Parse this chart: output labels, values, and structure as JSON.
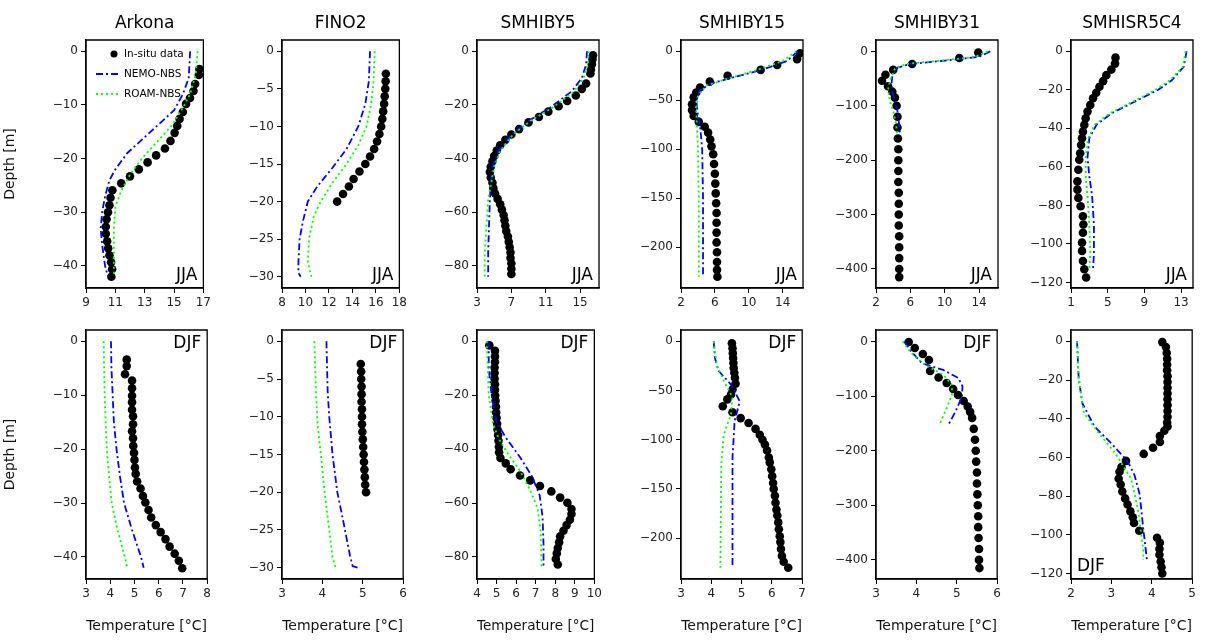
{
  "chart_data": [
    {
      "type": "scatter",
      "title": "Arkona",
      "ylabel": "Depth [m]",
      "xlim": [
        9,
        17
      ],
      "xticks": [
        9,
        11,
        13,
        15,
        17
      ],
      "ylim": [
        -44.1,
        2.1
      ],
      "yticks": [
        0,
        -10,
        -20,
        -30,
        -40
      ],
      "legend": "top left",
      "annotations": [
        "JJA"
      ],
      "series": [
        {
          "name": "In-situ data",
          "type": "scatter",
          "color": "#000000",
          "marker": "circle",
          "x": [
            16.73,
            16.69,
            16.44,
            16.33,
            16.09,
            15.82,
            15.6,
            15.38,
            15.22,
            15.04,
            14.76,
            14.38,
            13.78,
            13.2,
            12.6,
            12.0,
            11.4,
            10.8,
            10.67,
            10.6,
            10.5,
            10.4,
            10.35,
            10.35,
            10.44,
            10.51,
            10.6,
            10.71,
            10.78,
            10.73
          ],
          "values": [
            -3.3,
            -4.4,
            -6.1,
            -7.4,
            -8.7,
            -9.8,
            -11.3,
            -12.6,
            -13.9,
            -15.2,
            -16.7,
            -18.1,
            -19.4,
            -20.7,
            -22,
            -23.3,
            -24.6,
            -25.9,
            -27.3,
            -28.7,
            -30,
            -31.3,
            -32.7,
            -34,
            -35.4,
            -36.7,
            -38,
            -39.3,
            -40.6,
            -42
          ]
        },
        {
          "name": "NEMO-NBS",
          "type": "line",
          "color": "#0000ff",
          "line_style": "dashed",
          "x": [
            16.1,
            16.0,
            15.6,
            15.0,
            14.0,
            12.8,
            11.8,
            11.0,
            10.6,
            10.3,
            10.1,
            10.0,
            10.1,
            10.3,
            10.5
          ],
          "values": [
            0,
            -5,
            -8,
            -11,
            -13.5,
            -16.5,
            -19,
            -22,
            -24,
            -27,
            -30,
            -33,
            -36,
            -40,
            -42
          ]
        },
        {
          "name": "ROAM-NBS",
          "type": "line",
          "color": "#00ff00",
          "line_style": "dotted",
          "x": [
            16.6,
            16.5,
            16.1,
            15.5,
            14.8,
            13.8,
            12.8,
            12.0,
            11.4,
            11.0,
            10.9,
            10.9,
            10.9
          ],
          "values": [
            0,
            -4,
            -8,
            -11,
            -14,
            -17,
            -20,
            -23,
            -26,
            -29,
            -33,
            -38,
            -42
          ]
        }
      ]
    },
    {
      "type": "scatter",
      "title": "FINO2",
      "xlim": [
        8,
        18
      ],
      "xticks": [
        8,
        10,
        12,
        14,
        16,
        18
      ],
      "ylim": [
        -31.5,
        1.5
      ],
      "yticks": [
        0,
        -5,
        -10,
        -15,
        -20,
        -25,
        -30
      ],
      "annotations": [
        "JJA"
      ],
      "series": [
        {
          "type": "scatter",
          "color": "#000000",
          "marker": "circle",
          "x": [
            16.85,
            16.83,
            16.8,
            16.75,
            16.7,
            16.62,
            16.55,
            16.45,
            16.3,
            16.1,
            15.85,
            15.5,
            15.1,
            14.6,
            14.1,
            13.7,
            13.2,
            12.7
          ],
          "values": [
            -3,
            -4,
            -5,
            -6,
            -7,
            -8,
            -9,
            -10,
            -11,
            -12,
            -13,
            -14,
            -15,
            -16,
            -17,
            -18,
            -19,
            -20
          ]
        },
        {
          "type": "line",
          "color": "#0000ff",
          "line_style": "dashed",
          "x": [
            15.5,
            15.4,
            15.1,
            14.5,
            13.5,
            12.3,
            11.0,
            10.2,
            9.8,
            9.5,
            9.4,
            9.4,
            9.6
          ],
          "values": [
            0,
            -4,
            -7,
            -10,
            -13,
            -15.5,
            -18,
            -20,
            -22.5,
            -25,
            -28,
            -29.5,
            -30
          ]
        },
        {
          "type": "line",
          "color": "#00ff00",
          "line_style": "dotted",
          "x": [
            15.9,
            15.8,
            15.6,
            15.2,
            14.5,
            13.5,
            12.3,
            11.3,
            10.7,
            10.3,
            10.2,
            10.5
          ],
          "values": [
            0,
            -4,
            -7,
            -10,
            -12.5,
            -15,
            -17.5,
            -20,
            -22,
            -25,
            -28,
            -30
          ]
        }
      ]
    },
    {
      "type": "scatter",
      "title": "SMHIBY5",
      "xlim": [
        3,
        17.2
      ],
      "xticks": [
        3,
        7,
        11,
        15
      ],
      "ylim": [
        -88.2,
        4.2
      ],
      "yticks": [
        0,
        -20,
        -40,
        -60,
        -80
      ],
      "annotations": [
        "JJA"
      ],
      "series": [
        {
          "type": "scatter",
          "color": "#000000",
          "marker": "circle",
          "x": [
            16.5,
            16.44,
            16.37,
            16.26,
            16.2,
            15.7,
            15.2,
            14.5,
            13.5,
            12.5,
            11.3,
            10.2,
            9.0,
            7.9,
            7.0,
            6.3,
            5.7,
            5.3,
            5.0,
            4.8,
            4.6,
            4.5,
            4.6,
            4.8,
            4.9,
            5.1,
            5.4,
            5.7,
            5.9,
            6.1,
            6.2,
            6.3,
            6.4,
            6.6,
            6.7,
            6.8,
            6.9,
            6.9,
            7.0,
            7.0,
            7.0
          ],
          "values": [
            -1.5,
            -3,
            -4.8,
            -6.8,
            -8.3,
            -12,
            -14,
            -16.5,
            -18.5,
            -20.5,
            -22.5,
            -24.5,
            -26.5,
            -29,
            -31,
            -33,
            -35,
            -37,
            -39,
            -41,
            -43,
            -45,
            -47,
            -49,
            -51,
            -53,
            -55,
            -57,
            -59,
            -61,
            -63,
            -65,
            -67,
            -69,
            -71,
            -73,
            -75,
            -77,
            -79,
            -81,
            -83
          ]
        },
        {
          "type": "line",
          "color": "#0000ff",
          "line_style": "dashed",
          "x": [
            15.8,
            15.7,
            15.2,
            14.0,
            11.5,
            9.0,
            7.0,
            5.5,
            4.8,
            4.6,
            4.5,
            4.4,
            4.3,
            4.3
          ],
          "values": [
            0,
            -5,
            -10,
            -15,
            -21,
            -26,
            -31,
            -37,
            -43,
            -50,
            -55,
            -65,
            -75,
            -84
          ]
        },
        {
          "type": "line",
          "color": "#00ff00",
          "line_style": "dotted",
          "x": [
            16.0,
            15.9,
            15.4,
            14.3,
            11.8,
            9.2,
            7.2,
            5.7,
            5.0,
            4.6,
            4.3,
            4.1,
            3.9,
            3.9
          ],
          "values": [
            0,
            -5,
            -10,
            -15,
            -21,
            -26,
            -31,
            -37,
            -43,
            -50,
            -55,
            -65,
            -75,
            -84
          ]
        }
      ]
    },
    {
      "type": "scatter",
      "title": "SMHIBY15",
      "xlim": [
        2,
        16.4
      ],
      "xticks": [
        2,
        6,
        10,
        14
      ],
      "ylim": [
        -241.5,
        11.5
      ],
      "yticks": [
        0,
        -50,
        -100,
        -150,
        -200
      ],
      "annotations": [
        "JJA"
      ],
      "series": [
        {
          "type": "scatter",
          "color": "#000000",
          "marker": "circle",
          "x": [
            16.05,
            15.7,
            13.35,
            11.4,
            7.5,
            5.4,
            4.25,
            3.8,
            3.5,
            3.3,
            3.3,
            3.5,
            4.1,
            4.8,
            5.2,
            5.45,
            5.6,
            5.8,
            5.9,
            6.0,
            6.05,
            6.1,
            6.15,
            6.2,
            6.2,
            6.2,
            6.2,
            6.25,
            6.25,
            6.25,
            6.3
          ],
          "values": [
            -2,
            -8,
            -14,
            -19,
            -25,
            -31,
            -37,
            -42,
            -47,
            -54,
            -60,
            -66,
            -72,
            -77,
            -83,
            -90,
            -97,
            -105,
            -115,
            -125,
            -135,
            -145,
            -155,
            -165,
            -175,
            -185,
            -195,
            -205,
            -215,
            -223,
            -230
          ]
        },
        {
          "type": "line",
          "color": "#0000ff",
          "line_style": "dashed",
          "x": [
            15.8,
            14.5,
            11.5,
            8.0,
            5.5,
            4.2,
            3.8,
            4.0,
            4.3,
            4.5,
            4.6,
            4.6
          ],
          "values": [
            0,
            -10,
            -19,
            -27,
            -33,
            -40,
            -50,
            -65,
            -80,
            -100,
            -150,
            -230
          ]
        },
        {
          "type": "line",
          "color": "#00ff00",
          "line_style": "dotted",
          "x": [
            15.6,
            14.0,
            11.0,
            7.5,
            5.0,
            4.0,
            3.8,
            3.9,
            4.0,
            4.1,
            4.1
          ],
          "values": [
            0,
            -10,
            -19,
            -28,
            -35,
            -45,
            -60,
            -80,
            -100,
            -150,
            -230
          ]
        }
      ]
    },
    {
      "type": "scatter",
      "title": "SMHIBY31",
      "xlim": [
        2,
        16.2
      ],
      "xticks": [
        2,
        6,
        10,
        14
      ],
      "ylim": [
        -435,
        21
      ],
      "yticks": [
        0,
        -100,
        -200,
        -300,
        -400
      ],
      "annotations": [
        "JJA"
      ],
      "series": [
        {
          "type": "scatter",
          "color": "#000000",
          "marker": "circle",
          "x": [
            13.9,
            11.7,
            6.2,
            4.0,
            3.1,
            2.7,
            3.4,
            3.9,
            4.2,
            4.4,
            4.5,
            4.5,
            4.55,
            4.6,
            4.6,
            4.6,
            4.6,
            4.65,
            4.65,
            4.65,
            4.65,
            4.7,
            4.7,
            4.7,
            4.7,
            4.7
          ],
          "values": [
            -2,
            -12,
            -23,
            -34,
            -43,
            -54,
            -64,
            -74,
            -85,
            -100,
            -120,
            -140,
            -160,
            -180,
            -200,
            -220,
            -240,
            -260,
            -280,
            -300,
            -320,
            -340,
            -360,
            -380,
            -400,
            -415
          ]
        },
        {
          "type": "line",
          "color": "#0000ff",
          "line_style": "dashed",
          "x": [
            15.3,
            14.0,
            10.0,
            6.0,
            4.5,
            3.9,
            3.8,
            3.9,
            4.2,
            4.5,
            4.7,
            4.8
          ],
          "values": [
            0,
            -10,
            -17,
            -23,
            -30,
            -45,
            -60,
            -75,
            -90,
            -110,
            -135,
            -155
          ]
        },
        {
          "type": "line",
          "color": "#00ff00",
          "line_style": "dotted",
          "x": [
            15.0,
            13.5,
            9.5,
            5.5,
            4.2,
            3.7,
            3.4,
            3.6,
            4.0,
            4.3,
            4.5
          ],
          "values": [
            0,
            -10,
            -17,
            -23,
            -32,
            -50,
            -70,
            -90,
            -110,
            -130,
            -155
          ]
        }
      ]
    },
    {
      "type": "scatter",
      "title": "SMHISR5C4",
      "xlim": [
        1,
        14.3
      ],
      "xticks": [
        1,
        5,
        9,
        13
      ],
      "ylim": [
        -122.85,
        5.85
      ],
      "yticks": [
        0,
        -20,
        -40,
        -60,
        -80,
        -100,
        -120
      ],
      "annotations": [
        "JJA"
      ],
      "series": [
        {
          "type": "scatter",
          "color": "#000000",
          "marker": "circle",
          "x": [
            5.85,
            5.8,
            5.4,
            4.85,
            4.5,
            4.1,
            3.75,
            3.4,
            3.1,
            2.8,
            2.6,
            2.45,
            2.3,
            2.2,
            2.1,
            2.0,
            1.9,
            1.8,
            1.7,
            1.7,
            1.8,
            2.05,
            2.3,
            2.35,
            2.3,
            2.2,
            2.2,
            2.3,
            2.45,
            2.65
          ],
          "values": [
            -3.3,
            -6.4,
            -9.5,
            -12.4,
            -15.5,
            -18.4,
            -21.5,
            -24.4,
            -27.9,
            -31.3,
            -34.8,
            -38.2,
            -41.7,
            -45.1,
            -48.6,
            -52.9,
            -56.3,
            -61.5,
            -67.5,
            -71.8,
            -76.1,
            -80.4,
            -85.6,
            -89.9,
            -94.2,
            -99.3,
            -103.6,
            -108.8,
            -113.1,
            -117.4
          ]
        },
        {
          "type": "line",
          "color": "#0000ff",
          "line_style": "dashed",
          "x": [
            13.6,
            13.3,
            12.0,
            10.5,
            8.0,
            5.5,
            3.8,
            3.0,
            2.8,
            3.0,
            3.3,
            3.5,
            3.5,
            3.4
          ],
          "values": [
            0,
            -8,
            -15,
            -20,
            -26,
            -32,
            -38,
            -45,
            -55,
            -65,
            -75,
            -90,
            -105,
            -113
          ]
        },
        {
          "type": "line",
          "color": "#00ff00",
          "line_style": "dotted",
          "x": [
            13.5,
            13.2,
            11.8,
            10.2,
            7.8,
            5.3,
            3.6,
            2.9,
            2.6,
            2.6,
            2.8,
            3.0,
            3.1,
            3.0
          ],
          "values": [
            0,
            -8,
            -15,
            -20,
            -26,
            -32,
            -38,
            -45,
            -55,
            -65,
            -75,
            -90,
            -105,
            -113
          ]
        }
      ]
    },
    {
      "type": "scatter",
      "xlabel": "Temperature [°C]",
      "ylabel": "Depth [m]",
      "xlim": [
        3,
        8
      ],
      "xticks": [
        3,
        4,
        5,
        6,
        7,
        8
      ],
      "ylim": [
        -44.1,
        2.1
      ],
      "yticks": [
        0,
        -10,
        -20,
        -30,
        -40
      ],
      "annotations": [
        "DJF"
      ],
      "series": [
        {
          "type": "scatter",
          "color": "#000000",
          "marker": "circle",
          "x": [
            4.68,
            4.68,
            4.61,
            4.9,
            4.9,
            4.9,
            4.9,
            4.9,
            4.94,
            4.94,
            4.9,
            4.94,
            4.95,
            4.98,
            5.0,
            5.02,
            5.05,
            5.11,
            5.25,
            5.35,
            5.45,
            5.58,
            5.69,
            5.88,
            6.08,
            6.28,
            6.45,
            6.66,
            6.83,
            6.97
          ],
          "values": [
            -3.4,
            -4.6,
            -6.1,
            -7.3,
            -8.7,
            -10.1,
            -11.3,
            -12.7,
            -13.9,
            -15.4,
            -16.7,
            -18,
            -19.4,
            -20.7,
            -22,
            -23.4,
            -24.6,
            -26,
            -27.3,
            -28.7,
            -29.9,
            -31.3,
            -32.7,
            -34.1,
            -35.4,
            -36.7,
            -38.1,
            -39.4,
            -40.7,
            -42.1
          ]
        },
        {
          "type": "line",
          "color": "#0000ff",
          "line_style": "dashed",
          "x": [
            4.03,
            4.05,
            4.1,
            4.15,
            4.26,
            4.4,
            4.57,
            4.9,
            5.27,
            5.38
          ],
          "values": [
            0,
            -5,
            -10,
            -15,
            -20,
            -25,
            -30,
            -35,
            -40,
            -42
          ]
        },
        {
          "type": "line",
          "color": "#00ff00",
          "line_style": "dotted",
          "x": [
            3.73,
            3.75,
            3.77,
            3.81,
            3.86,
            3.95,
            4.06,
            4.3,
            4.6,
            4.7
          ],
          "values": [
            0,
            -5,
            -10,
            -15,
            -20,
            -25,
            -30,
            -35,
            -40,
            -42
          ]
        }
      ]
    },
    {
      "type": "scatter",
      "xlabel": "Temperature [°C]",
      "xlim": [
        3,
        6
      ],
      "xticks": [
        3,
        4,
        5,
        6
      ],
      "ylim": [
        -31.5,
        1.5
      ],
      "yticks": [
        0,
        -5,
        -10,
        -15,
        -20,
        -25,
        -30
      ],
      "annotations": [
        "DJF"
      ],
      "series": [
        {
          "type": "scatter",
          "color": "#000000",
          "marker": "circle",
          "x": [
            4.95,
            4.96,
            4.96,
            4.97,
            4.97,
            4.97,
            4.98,
            4.98,
            4.98,
            4.99,
            5.0,
            5.01,
            5.02,
            5.03,
            5.04,
            5.05,
            5.06,
            5.08
          ],
          "values": [
            -3,
            -4,
            -5,
            -6,
            -7,
            -8,
            -9,
            -10,
            -11,
            -12,
            -13,
            -14,
            -15,
            -16,
            -17,
            -18,
            -19,
            -20
          ]
        },
        {
          "type": "line",
          "color": "#0000ff",
          "line_style": "dashed",
          "x": [
            4.1,
            4.13,
            4.17,
            4.25,
            4.37,
            4.53,
            4.69,
            4.75,
            4.87
          ],
          "values": [
            0,
            -6.6,
            -10,
            -15,
            -20,
            -24.2,
            -28.6,
            -29.8,
            -30
          ]
        },
        {
          "type": "line",
          "color": "#00ff00",
          "line_style": "dotted",
          "x": [
            3.8,
            3.84,
            3.88,
            3.97,
            4.05,
            4.17,
            4.25,
            4.33
          ],
          "values": [
            0,
            -6.6,
            -11,
            -15.4,
            -19.8,
            -25,
            -28.6,
            -30
          ]
        }
      ]
    },
    {
      "type": "scatter",
      "xlabel": "Temperature [°C]",
      "xlim": [
        4,
        10
      ],
      "xticks": [
        4,
        5,
        6,
        7,
        8,
        9,
        10
      ],
      "ylim": [
        -88.2,
        4.2
      ],
      "yticks": [
        0,
        -20,
        -40,
        -60,
        -80
      ],
      "annotations": [
        "DJF"
      ],
      "series": [
        {
          "type": "scatter",
          "color": "#000000",
          "marker": "circle",
          "x": [
            4.63,
            4.92,
            4.92,
            4.92,
            4.9,
            4.9,
            4.9,
            4.92,
            4.92,
            4.93,
            4.95,
            4.97,
            4.98,
            5.0,
            5.03,
            5.05,
            5.08,
            5.1,
            5.12,
            5.13,
            5.2,
            5.47,
            5.72,
            6.2,
            6.72,
            7.22,
            7.8,
            8.25,
            8.62,
            8.83,
            8.83,
            8.75,
            8.58,
            8.42,
            8.25,
            8.2,
            8.13,
            8.08,
            8.03,
            8.13
          ],
          "values": [
            -1.5,
            -3.5,
            -5.6,
            -7.7,
            -9.7,
            -11.8,
            -13.9,
            -15.9,
            -18,
            -20.1,
            -22.1,
            -24.3,
            -26.4,
            -28.4,
            -30.6,
            -32.7,
            -34.8,
            -36.9,
            -39.1,
            -41.2,
            -43.3,
            -45.3,
            -47.5,
            -49.8,
            -51.6,
            -53.7,
            -55.7,
            -58,
            -59.9,
            -62.2,
            -64.1,
            -66.2,
            -68.2,
            -70.3,
            -72.4,
            -74.6,
            -76.7,
            -78.7,
            -80.8,
            -82.8
          ]
        },
        {
          "type": "line",
          "color": "#0000ff",
          "line_style": "dashed",
          "x": [
            4.6,
            4.6,
            4.75,
            5.0,
            5.5,
            6.2,
            6.8,
            7.2,
            7.35,
            7.4,
            7.4
          ],
          "values": [
            0,
            -10,
            -20,
            -30,
            -36,
            -43,
            -50,
            -57,
            -65,
            -75,
            -84
          ]
        },
        {
          "type": "line",
          "color": "#00ff00",
          "line_style": "dotted",
          "x": [
            4.5,
            4.55,
            4.6,
            4.8,
            5.1,
            5.6,
            6.2,
            6.7,
            7.1,
            7.25,
            7.3
          ],
          "values": [
            0,
            -10,
            -20,
            -30,
            -36,
            -42,
            -48,
            -55,
            -62,
            -70,
            -84
          ]
        }
      ]
    },
    {
      "type": "scatter",
      "xlabel": "Temperature [°C]",
      "xlim": [
        3,
        7
      ],
      "xticks": [
        3,
        4,
        5,
        6,
        7
      ],
      "ylim": [
        -241.5,
        11.5
      ],
      "yticks": [
        0,
        -50,
        -100,
        -150,
        -200
      ],
      "annotations": [
        "DJF"
      ],
      "series": [
        {
          "type": "scatter",
          "color": "#000000",
          "marker": "circle",
          "x": [
            4.68,
            4.7,
            4.71,
            4.72,
            4.73,
            4.74,
            4.76,
            4.78,
            4.8,
            4.7,
            4.65,
            4.53,
            4.38,
            4.7,
            4.97,
            5.23,
            5.46,
            5.6,
            5.69,
            5.77,
            5.84,
            5.9,
            5.93,
            5.98,
            6.01,
            6.04,
            6.06,
            6.1,
            6.12,
            6.15,
            6.18,
            6.21,
            6.23,
            6.26,
            6.28,
            6.3,
            6.33,
            6.39,
            6.54
          ],
          "values": [
            -2,
            -7,
            -12,
            -17,
            -22,
            -27,
            -32,
            -37,
            -43,
            -49,
            -54,
            -59,
            -66,
            -72,
            -78,
            -83,
            -89,
            -95,
            -100,
            -105,
            -111,
            -118,
            -123,
            -130,
            -137,
            -144,
            -150,
            -157,
            -164,
            -171,
            -177,
            -184,
            -191,
            -198,
            -204,
            -211,
            -218,
            -224,
            -230
          ]
        },
        {
          "type": "line",
          "color": "#0000ff",
          "line_style": "dashed",
          "x": [
            4.08,
            4.12,
            4.24,
            4.65,
            4.94,
            4.77,
            4.7,
            4.7
          ],
          "values": [
            0,
            -17,
            -30,
            -44,
            -61,
            -81,
            -118,
            -230
          ]
        },
        {
          "type": "line",
          "color": "#00ff00",
          "line_style": "dotted",
          "x": [
            4.08,
            4.18,
            4.41,
            4.7,
            4.65,
            4.41,
            4.33,
            4.3
          ],
          "values": [
            0,
            -24,
            -40,
            -57,
            -74,
            -95,
            -125,
            -230
          ]
        }
      ]
    },
    {
      "type": "scatter",
      "xlabel": "Temperature [°C]",
      "xlim": [
        3,
        6
      ],
      "xticks": [
        3,
        4,
        5,
        6
      ],
      "ylim": [
        -435,
        21
      ],
      "yticks": [
        0,
        -100,
        -200,
        -300,
        -400
      ],
      "annotations": [
        "DJF"
      ],
      "series": [
        {
          "type": "scatter",
          "color": "#000000",
          "marker": "circle",
          "x": [
            3.81,
            3.96,
            4.16,
            4.31,
            4.34,
            4.55,
            4.75,
            4.91,
            5.03,
            5.17,
            5.27,
            5.33,
            5.38,
            5.42,
            5.45,
            5.47,
            5.48,
            5.5,
            5.5,
            5.51,
            5.52,
            5.53,
            5.53,
            5.54,
            5.55,
            5.55,
            5.56
          ],
          "values": [
            -1,
            -12,
            -23,
            -34,
            -54,
            -66,
            -76,
            -87,
            -98,
            -109,
            -119,
            -129,
            -140,
            -160,
            -180,
            -200,
            -220,
            -240,
            -260,
            -280,
            -300,
            -320,
            -340,
            -360,
            -380,
            -400,
            -415
          ]
        },
        {
          "type": "line",
          "color": "#0000ff",
          "line_style": "dashed",
          "x": [
            3.7,
            3.87,
            4.14,
            4.66,
            5.04,
            5.14,
            5.13,
            4.97,
            4.79
          ],
          "values": [
            0,
            -18,
            -40,
            -52,
            -67,
            -82,
            -101,
            -128,
            -153
          ]
        },
        {
          "type": "line",
          "color": "#00ff00",
          "line_style": "dotted",
          "x": [
            3.66,
            3.87,
            4.22,
            4.66,
            4.88,
            4.88,
            4.75,
            4.57
          ],
          "values": [
            0,
            -21,
            -43,
            -61,
            -79,
            -98,
            -122,
            -153
          ]
        }
      ]
    },
    {
      "type": "scatter",
      "xlabel": "Temperature [°C]",
      "xlim": [
        2,
        5
      ],
      "xticks": [
        2,
        3,
        4,
        5
      ],
      "ylim": [
        -122.85,
        5.85
      ],
      "yticks": [
        0,
        -20,
        -40,
        -60,
        -80,
        -100,
        -120
      ],
      "annotations": [
        "DJF"
      ],
      "series": [
        {
          "type": "scatter",
          "color": "#000000",
          "marker": "circle",
          "x": [
            4.26,
            4.35,
            4.37,
            4.38,
            4.38,
            4.38,
            4.39,
            4.39,
            4.39,
            4.39,
            4.39,
            4.39,
            4.39,
            4.39,
            4.38,
            4.39,
            4.31,
            4.2,
            4.2,
            4.03,
            3.8,
            3.36,
            3.25,
            3.2,
            3.18,
            3.23,
            3.27,
            3.34,
            3.4,
            3.47,
            3.53,
            3.56,
            3.69,
            4.13,
            4.2,
            4.19,
            4.19,
            4.22,
            4.24,
            4.26
          ],
          "values": [
            -0.4,
            -3,
            -6,
            -9,
            -12,
            -15,
            -18,
            -21,
            -24,
            -27,
            -30,
            -33,
            -36,
            -39,
            -42,
            -44,
            -46.2,
            -49,
            -52,
            -55,
            -58.2,
            -61.8,
            -65,
            -67.4,
            -71,
            -74,
            -77.6,
            -81.2,
            -84.3,
            -87.9,
            -90.9,
            -93.9,
            -97.9,
            -101.5,
            -104.1,
            -107.3,
            -110.3,
            -113.8,
            -116.8,
            -120
          ]
        },
        {
          "type": "line",
          "color": "#0000ff",
          "line_style": "dashed",
          "x": [
            2.15,
            2.19,
            2.28,
            2.58,
            3.01,
            3.4,
            3.57,
            3.7,
            3.79,
            3.88
          ],
          "values": [
            0,
            -19,
            -32,
            -44,
            -53,
            -62,
            -69,
            -79,
            -97,
            -113
          ]
        },
        {
          "type": "line",
          "color": "#00ff00",
          "line_style": "dotted",
          "x": [
            2.15,
            2.19,
            2.32,
            2.67,
            3.1,
            3.49,
            3.66,
            3.79,
            3.79
          ],
          "values": [
            0,
            -19,
            -37,
            -47,
            -58,
            -71,
            -87,
            -108,
            -113
          ]
        }
      ]
    }
  ]
}
